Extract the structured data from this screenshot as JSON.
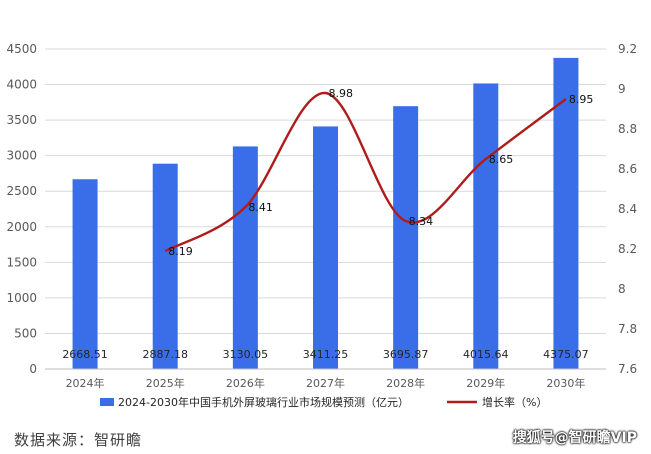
{
  "chart_data": {
    "type": "bar",
    "categories": [
      "2024年",
      "2025年",
      "2026年",
      "2027年",
      "2028年",
      "2029年",
      "2030年"
    ],
    "series": [
      {
        "name": "2024-2030年中国手机外屏玻璃行业市场规模预测（亿元）",
        "type": "bar",
        "axis": "left",
        "color": "#3a6ee8",
        "values": [
          2668.51,
          2887.18,
          3130.05,
          3411.25,
          3695.87,
          4015.64,
          4375.07
        ],
        "labels": [
          "2668.51",
          "2887.18",
          "3130.05",
          "3411.25",
          "3695.87",
          "4015.64",
          "4375.07"
        ]
      },
      {
        "name": "增长率（%）",
        "type": "line",
        "axis": "right",
        "color": "#b01c1c",
        "values": [
          null,
          8.19,
          8.41,
          8.98,
          8.34,
          8.65,
          8.95
        ],
        "labels": [
          "",
          "8.19",
          "8.41",
          "8.98",
          "8.34",
          "8.65",
          "8.95"
        ]
      }
    ],
    "y_left": {
      "min": 0,
      "max": 4500,
      "step": 500,
      "ticks": [
        "0",
        "500",
        "1000",
        "1500",
        "2000",
        "2500",
        "3000",
        "3500",
        "4000",
        "4500"
      ]
    },
    "y_right": {
      "min": 7.6,
      "max": 9.2,
      "step": 0.2,
      "ticks": [
        "7.6",
        "7.8",
        "8",
        "8.2",
        "8.4",
        "8.6",
        "8.8",
        "9",
        "9.2"
      ]
    },
    "grid": true,
    "legend_position": "bottom"
  },
  "footer": {
    "source": "数据来源：智研瞻",
    "watermark": "搜狐号@智研瞻VIP"
  }
}
